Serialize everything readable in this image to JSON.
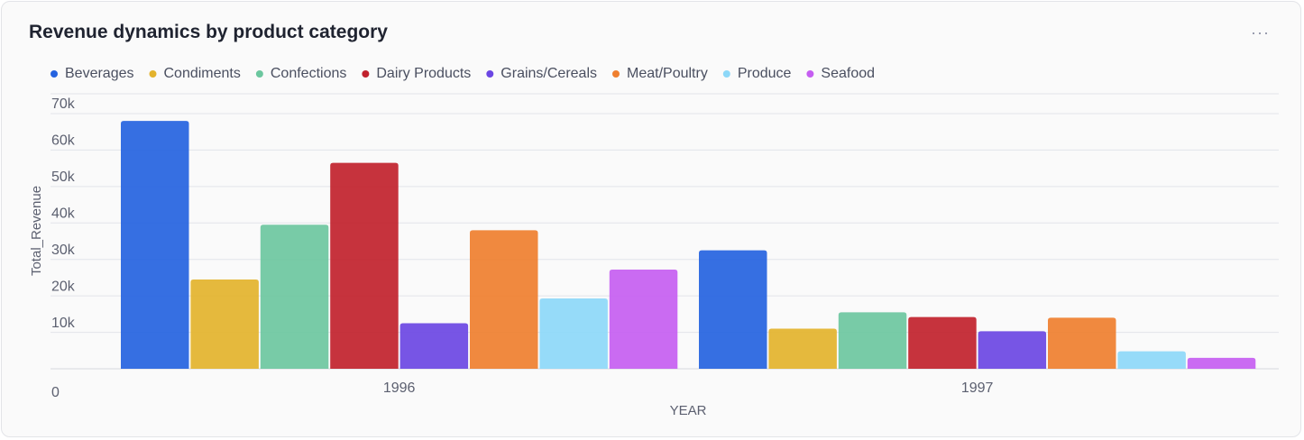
{
  "card": {
    "title": "Revenue dynamics by product category",
    "menu_icon": "more-horizontal-icon",
    "menu_glyph": "···"
  },
  "chart_data": {
    "type": "bar",
    "title": "Revenue dynamics by product category",
    "xlabel": "YEAR",
    "ylabel": "Total_Revenue",
    "categories": [
      "1996",
      "1997"
    ],
    "ylim": [
      0,
      70000
    ],
    "yticks": [
      "0",
      "10k",
      "20k",
      "30k",
      "40k",
      "50k",
      "60k",
      "70k"
    ],
    "grid": true,
    "legend_position": "top-left",
    "series": [
      {
        "name": "Beverages",
        "color": "#2563e0",
        "values": [
          68000,
          32500
        ]
      },
      {
        "name": "Condiments",
        "color": "#e3b32d",
        "values": [
          24500,
          11000
        ]
      },
      {
        "name": "Confections",
        "color": "#6cc79f",
        "values": [
          39500,
          15500
        ]
      },
      {
        "name": "Dairy Products",
        "color": "#c1222d",
        "values": [
          56500,
          14200
        ]
      },
      {
        "name": "Grains/Cereals",
        "color": "#6b46e3",
        "values": [
          12500,
          10300
        ]
      },
      {
        "name": "Meat/Poultry",
        "color": "#ef7f2f",
        "values": [
          38000,
          14000
        ]
      },
      {
        "name": "Produce",
        "color": "#8dd8f8",
        "values": [
          19300,
          4800
        ]
      },
      {
        "name": "Seafood",
        "color": "#c55ef1",
        "values": [
          27200,
          3000
        ]
      }
    ]
  }
}
